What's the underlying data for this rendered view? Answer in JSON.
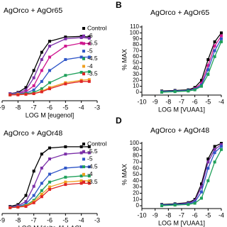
{
  "chart_data": [
    {
      "type": "line",
      "title": "AgOrco + AgOr65",
      "x_label": "LOG M [eugenol]",
      "x": [
        -8.5,
        -8,
        -7.5,
        -7,
        -6.5,
        -6,
        -5,
        -4,
        -3.5
      ],
      "xlim": [
        -9,
        -3
      ],
      "xticks": [
        -9,
        -8,
        -7,
        -6,
        -5,
        -4,
        -3
      ],
      "ylim": [
        -5,
        115
      ],
      "legend": "right",
      "series": [
        {
          "name": "Control",
          "color": "#000000",
          "values": [
            2,
            4,
            12,
            40,
            70,
            88,
            95,
            96,
            95
          ]
        },
        {
          "name": "-6",
          "color": "#7b2fa8",
          "values": [
            2,
            3,
            8,
            28,
            58,
            80,
            92,
            94,
            93
          ]
        },
        {
          "name": "-5.5",
          "color": "#d0178f",
          "values": [
            1,
            2,
            5,
            15,
            40,
            62,
            80,
            85,
            84
          ]
        },
        {
          "name": "-5",
          "color": "#2f56c8",
          "values": [
            1,
            2,
            3,
            8,
            22,
            40,
            58,
            62,
            62
          ]
        },
        {
          "name": "-4.5",
          "color": "#1fa05a",
          "values": [
            0,
            1,
            2,
            4,
            10,
            20,
            32,
            37,
            38
          ]
        },
        {
          "name": "-4",
          "color": "#f0a020",
          "values": [
            0,
            1,
            1,
            2,
            6,
            12,
            20,
            24,
            25
          ]
        },
        {
          "name": "-3.5",
          "color": "#e02525",
          "values": [
            0,
            0,
            1,
            2,
            5,
            10,
            18,
            22,
            22
          ]
        }
      ]
    },
    {
      "type": "line",
      "panel_label": "B",
      "title": "AgOrco + AgOr65",
      "x_label": "LOG M [VUAA1]",
      "y_label": "% MAX",
      "x": [
        -8.5,
        -7.5,
        -6.5,
        -6,
        -5.5,
        -5,
        -4.5,
        -4
      ],
      "xlim": [
        -10,
        -4
      ],
      "xticks": [
        -10,
        -9,
        -8,
        -7,
        -6,
        -5,
        -4
      ],
      "ylim": [
        0,
        110
      ],
      "yticks": [
        0,
        10,
        20,
        30,
        40,
        50,
        60,
        70,
        80,
        90,
        100,
        110
      ],
      "series": [
        {
          "color": "#000000",
          "values": [
            2,
            3,
            4,
            8,
            20,
            55,
            85,
            100
          ]
        },
        {
          "color": "#d0178f",
          "values": [
            1,
            2,
            3,
            6,
            15,
            45,
            78,
            95
          ]
        },
        {
          "color": "#2f56c8",
          "values": [
            1,
            2,
            3,
            5,
            12,
            38,
            70,
            90
          ]
        },
        {
          "color": "#1fa05a",
          "values": [
            0,
            1,
            2,
            4,
            10,
            30,
            60,
            85
          ]
        }
      ]
    },
    {
      "type": "line",
      "title": "AgOrco + AgOr48",
      "x_label": "LOG M [delta-11-LAC]",
      "x": [
        -8.5,
        -8,
        -7.5,
        -7,
        -6.5,
        -6,
        -5,
        -4,
        -3.5
      ],
      "xlim": [
        -9,
        -3
      ],
      "xticks": [
        -9,
        -8,
        -7,
        -6,
        -5,
        -4,
        -3
      ],
      "ylim": [
        -5,
        115
      ],
      "legend": "right",
      "series": [
        {
          "name": "Control",
          "color": "#000000",
          "values": [
            2,
            5,
            20,
            60,
            88,
            98,
            100,
            100,
            100
          ]
        },
        {
          "name": "-5.5",
          "color": "#7b2fa8",
          "values": [
            1,
            3,
            10,
            35,
            65,
            80,
            88,
            90,
            90
          ]
        },
        {
          "name": "-5",
          "color": "#2f56c8",
          "values": [
            1,
            2,
            6,
            20,
            40,
            55,
            65,
            67,
            67
          ]
        },
        {
          "name": "-4.5",
          "color": "#1fa05a",
          "values": [
            0,
            1,
            4,
            12,
            28,
            42,
            50,
            52,
            52
          ]
        },
        {
          "name": "-4",
          "color": "#f0a020",
          "values": [
            0,
            1,
            3,
            10,
            22,
            34,
            42,
            44,
            44
          ]
        },
        {
          "name": "-3.5",
          "color": "#e02525",
          "values": [
            0,
            1,
            2,
            8,
            18,
            30,
            38,
            40,
            40
          ]
        }
      ]
    },
    {
      "type": "line",
      "panel_label": "D",
      "title": "AgOrco + AgOr48",
      "x_label": "LOG M [VUAA1]",
      "y_label": "% MAX",
      "x": [
        -8.5,
        -7.5,
        -6.5,
        -6,
        -5.5,
        -5,
        -4.5,
        -4
      ],
      "xlim": [
        -10,
        -4
      ],
      "xticks": [
        -10,
        -9,
        -8,
        -7,
        -6,
        -5,
        -4
      ],
      "ylim": [
        0,
        100
      ],
      "yticks": [
        0,
        10,
        20,
        30,
        40,
        50,
        60,
        70,
        80,
        90,
        100
      ],
      "series": [
        {
          "color": "#000000",
          "values": [
            2,
            3,
            5,
            10,
            35,
            75,
            95,
            100
          ]
        },
        {
          "color": "#7b2fa8",
          "values": [
            1,
            2,
            4,
            8,
            30,
            70,
            90,
            98
          ]
        },
        {
          "color": "#2f56c8",
          "values": [
            1,
            2,
            3,
            6,
            22,
            60,
            85,
            95
          ]
        },
        {
          "color": "#1fa05a",
          "values": [
            0,
            1,
            2,
            4,
            12,
            40,
            70,
            90
          ]
        }
      ]
    }
  ]
}
